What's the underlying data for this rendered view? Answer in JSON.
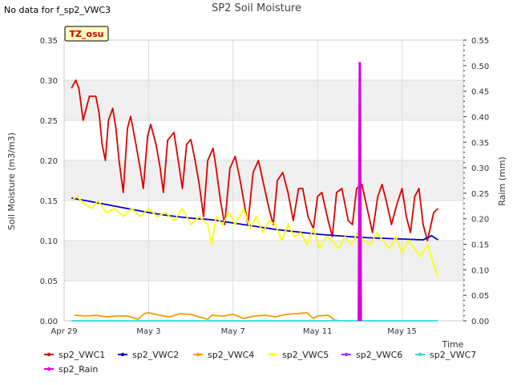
{
  "header": {
    "nodata": "No data for f_sp2_VWC3",
    "title": "SP2 Soil Moisture"
  },
  "chart_data": {
    "type": "line",
    "title": "SP2 Soil Moisture",
    "xlabel": "Time",
    "ylabel": "Soil Moisture (m3/m3)",
    "y2label": "Raim (mm)",
    "badge": "TZ_osu",
    "x_unit": "days from Apr 29",
    "xlim": [
      0,
      18.9
    ],
    "ylim": [
      0,
      0.35
    ],
    "y2lim": [
      0,
      0.55
    ],
    "xticks": [
      {
        "label": "Apr 29",
        "value": 0
      },
      {
        "label": "May 3",
        "value": 4
      },
      {
        "label": "May 7",
        "value": 8
      },
      {
        "label": "May 11",
        "value": 12
      },
      {
        "label": "May 15",
        "value": 16
      }
    ],
    "yticks": [
      "0.00",
      "0.05",
      "0.10",
      "0.15",
      "0.20",
      "0.25",
      "0.30",
      "0.35"
    ],
    "y2ticks": [
      "0.00",
      "0.05",
      "0.10",
      "0.15",
      "0.20",
      "0.25",
      "0.30",
      "0.35",
      "0.40",
      "0.45",
      "0.50",
      "0.55"
    ],
    "grid": true,
    "legend_position": "bottom",
    "series": [
      {
        "name": "sp2_VWC1",
        "color": "#dd0000",
        "axis": "left",
        "x": [
          0.35,
          0.55,
          0.7,
          0.9,
          1.0,
          1.2,
          1.5,
          1.65,
          1.8,
          1.95,
          2.1,
          2.3,
          2.45,
          2.6,
          2.8,
          3.0,
          3.15,
          3.4,
          3.6,
          3.75,
          3.95,
          4.1,
          4.35,
          4.55,
          4.7,
          4.9,
          5.2,
          5.4,
          5.6,
          5.8,
          6.0,
          6.2,
          6.4,
          6.6,
          6.8,
          7.05,
          7.2,
          7.4,
          7.6,
          7.85,
          8.1,
          8.3,
          8.5,
          8.7,
          8.95,
          9.2,
          9.45,
          9.7,
          9.9,
          10.1,
          10.35,
          10.6,
          10.85,
          11.1,
          11.3,
          11.55,
          11.8,
          12.0,
          12.2,
          12.5,
          12.7,
          12.9,
          13.15,
          13.45,
          13.65,
          13.85,
          14.1,
          14.35,
          14.6,
          14.85,
          15.05,
          15.25,
          15.5,
          15.75,
          16.0,
          16.2,
          16.4,
          16.6,
          16.8,
          17.0,
          17.2,
          17.5,
          17.7
        ],
        "y": [
          0.29,
          0.3,
          0.29,
          0.25,
          0.26,
          0.28,
          0.28,
          0.26,
          0.22,
          0.2,
          0.25,
          0.265,
          0.24,
          0.2,
          0.16,
          0.24,
          0.255,
          0.22,
          0.19,
          0.165,
          0.23,
          0.245,
          0.22,
          0.19,
          0.16,
          0.225,
          0.235,
          0.2,
          0.165,
          0.22,
          0.226,
          0.2,
          0.17,
          0.13,
          0.2,
          0.215,
          0.19,
          0.15,
          0.12,
          0.19,
          0.205,
          0.18,
          0.15,
          0.12,
          0.185,
          0.2,
          0.17,
          0.14,
          0.12,
          0.175,
          0.185,
          0.16,
          0.125,
          0.165,
          0.165,
          0.13,
          0.115,
          0.155,
          0.16,
          0.125,
          0.105,
          0.16,
          0.165,
          0.125,
          0.12,
          0.165,
          0.17,
          0.14,
          0.11,
          0.155,
          0.17,
          0.15,
          0.12,
          0.145,
          0.165,
          0.13,
          0.11,
          0.155,
          0.165,
          0.12,
          0.1,
          0.135,
          0.14
        ]
      },
      {
        "name": "sp2_VWC2",
        "color": "#0000cc",
        "axis": "left",
        "x": [
          0.35,
          1.0,
          2.0,
          3.0,
          4.0,
          5.0,
          6.0,
          7.0,
          8.0,
          8.5,
          9.0,
          10.0,
          11.0,
          12.0,
          13.0,
          14.0,
          15.0,
          16.0,
          17.0,
          17.4,
          17.7
        ],
        "y": [
          0.153,
          0.15,
          0.145,
          0.14,
          0.135,
          0.131,
          0.128,
          0.126,
          0.122,
          0.12,
          0.118,
          0.114,
          0.111,
          0.108,
          0.106,
          0.104,
          0.103,
          0.102,
          0.101,
          0.106,
          0.101
        ]
      },
      {
        "name": "sp2_VWC4",
        "color": "#ff9900",
        "axis": "left",
        "x": [
          0.5,
          1.0,
          1.5,
          2.0,
          2.5,
          3.0,
          3.5,
          3.8,
          4.0,
          4.5,
          5.0,
          5.5,
          6.0,
          6.5,
          6.8,
          7.0,
          7.5,
          8.0,
          8.5,
          9.0,
          9.5,
          10.0,
          10.5,
          11.0,
          11.5,
          11.8,
          12.0,
          12.5,
          12.8,
          13.0
        ],
        "y": [
          0.007,
          0.006,
          0.007,
          0.005,
          0.006,
          0.006,
          0.002,
          0.009,
          0.01,
          0.007,
          0.005,
          0.009,
          0.008,
          0.004,
          0.002,
          0.007,
          0.006,
          0.008,
          0.003,
          0.006,
          0.007,
          0.005,
          0.008,
          0.009,
          0.01,
          0.003,
          0.006,
          0.007,
          0.001,
          0.0
        ]
      },
      {
        "name": "sp2_VWC5",
        "color": "#ffff00",
        "axis": "left",
        "x": [
          0.35,
          0.6,
          1.0,
          1.3,
          1.6,
          2.0,
          2.4,
          2.8,
          3.2,
          3.6,
          4.0,
          4.4,
          4.8,
          5.2,
          5.6,
          6.0,
          6.4,
          6.8,
          7.0,
          7.2,
          7.5,
          7.8,
          8.1,
          8.5,
          8.8,
          9.1,
          9.4,
          9.7,
          10.0,
          10.3,
          10.6,
          10.9,
          11.2,
          11.5,
          11.8,
          12.1,
          12.4,
          12.7,
          13.0,
          13.3,
          13.6,
          13.9,
          14.2,
          14.5,
          14.8,
          15.1,
          15.4,
          15.7,
          16.0,
          16.3,
          16.6,
          16.9,
          17.2,
          17.5,
          17.7
        ],
        "y": [
          0.15,
          0.155,
          0.145,
          0.14,
          0.15,
          0.135,
          0.14,
          0.13,
          0.14,
          0.13,
          0.14,
          0.13,
          0.135,
          0.125,
          0.14,
          0.12,
          0.13,
          0.12,
          0.095,
          0.13,
          0.12,
          0.135,
          0.12,
          0.14,
          0.115,
          0.13,
          0.11,
          0.125,
          0.12,
          0.1,
          0.12,
          0.105,
          0.11,
          0.095,
          0.115,
          0.09,
          0.105,
          0.1,
          0.09,
          0.105,
          0.095,
          0.11,
          0.1,
          0.095,
          0.11,
          0.1,
          0.09,
          0.105,
          0.085,
          0.1,
          0.09,
          0.08,
          0.095,
          0.07,
          0.055
        ]
      },
      {
        "name": "sp2_VWC6",
        "color": "#9933ff",
        "axis": "left",
        "x": [],
        "y": []
      },
      {
        "name": "sp2_VWC7",
        "color": "#33dddd",
        "axis": "left",
        "x": [
          0.35,
          17.7
        ],
        "y": [
          0.0,
          0.0
        ]
      },
      {
        "name": "sp2_Rain",
        "color": "#dd00dd",
        "axis": "right",
        "x": [
          13.95,
          14.0,
          14.05
        ],
        "y": [
          0.0,
          0.505,
          0.0
        ]
      }
    ]
  }
}
